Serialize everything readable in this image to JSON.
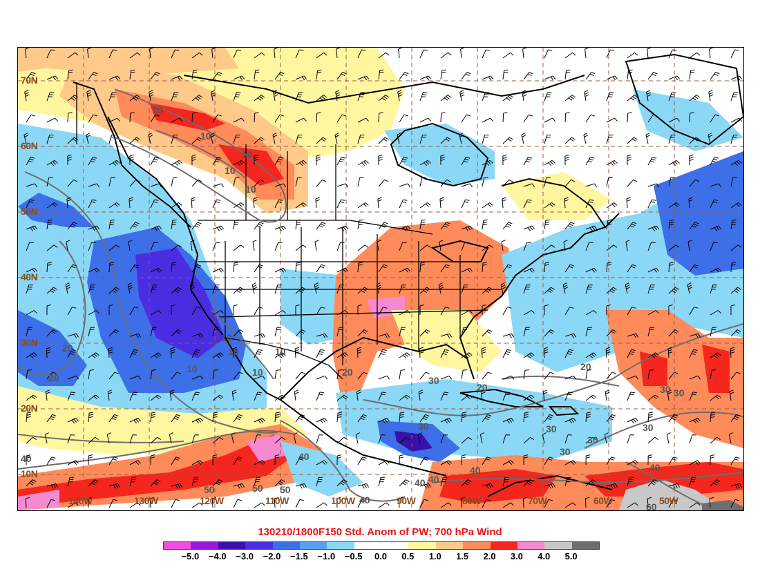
{
  "title": "130210/1800F150 Std. Anom of PW; 700 hPa Wind",
  "lat_labels": [
    "70N",
    "60N",
    "50N",
    "40N",
    "30N",
    "20N",
    "10N"
  ],
  "lon_labels": [
    "140W",
    "130W",
    "120W",
    "110W",
    "100W",
    "90W",
    "80W",
    "70W",
    "60W",
    "50W"
  ],
  "colorbar": {
    "colors": [
      "#f04ee0",
      "#9b19d6",
      "#3a10a8",
      "#4a2de0",
      "#3c6fe8",
      "#5aa0f0",
      "#8ad8f6",
      "#ffffff",
      "#ffffff",
      "#fff7a0",
      "#ffc98a",
      "#ff8a5a",
      "#f4261e",
      "#f58ad0",
      "#c8c8c8",
      "#6e6e6e"
    ],
    "labels": [
      "−5.0",
      "−4.0",
      "−3.0",
      "−2.0",
      "−1.5",
      "−1.0",
      "−0.5",
      "0.0",
      "0.5",
      "1.0",
      "1.5",
      "2.0",
      "3.0",
      "4.0",
      "5.0"
    ]
  },
  "contour_labels": [
    "10",
    "10",
    "10",
    "10",
    "10",
    "10",
    "10",
    "10",
    "10",
    "10",
    "20",
    "20",
    "20",
    "20",
    "20",
    "30",
    "30",
    "30",
    "30",
    "30",
    "30",
    "30",
    "30",
    "40",
    "40",
    "40",
    "40",
    "40",
    "40",
    "40",
    "50",
    "50",
    "50",
    "60"
  ]
}
